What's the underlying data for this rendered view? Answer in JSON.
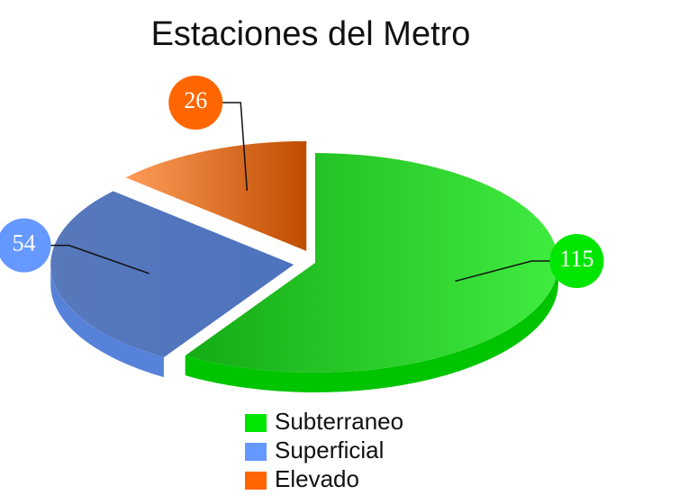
{
  "chart_data": {
    "type": "pie",
    "title": "Estaciones del Metro",
    "categories": [
      "Subterraneo",
      "Superficial",
      "Elevado"
    ],
    "values": [
      115,
      54,
      26
    ],
    "colors": [
      "#00e600",
      "#6699ff",
      "#ff6600"
    ],
    "legend": "bottom"
  }
}
